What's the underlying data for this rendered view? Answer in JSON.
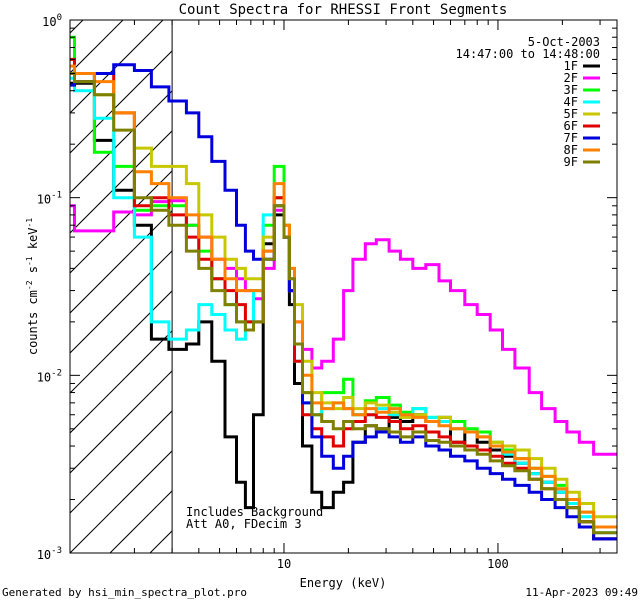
{
  "chart_data": {
    "type": "line",
    "title": "Count Spectra for RHESSI Front Segments",
    "xlabel": "Energy (keV)",
    "ylabel": "counts cm",
    "ylabel_parts": [
      "counts cm",
      "-2",
      " s",
      "-1",
      " keV",
      "-1"
    ],
    "x_scale": "log",
    "y_scale": "log",
    "xlim": [
      1,
      360
    ],
    "ylim": [
      0.001,
      1
    ],
    "x_tick_labels": [
      {
        "value": 10,
        "label": "10"
      },
      {
        "value": 100,
        "label": "100"
      }
    ],
    "y_tick_labels": [
      {
        "value": 1,
        "base": "10",
        "exp": "0"
      },
      {
        "value": 0.1,
        "base": "10",
        "exp": "-1"
      },
      {
        "value": 0.01,
        "base": "10",
        "exp": "-2"
      },
      {
        "value": 0.001,
        "base": "10",
        "exp": "-3"
      }
    ],
    "attenuator_line_energy": 3,
    "date": "5-Oct-2003",
    "time_range": "14:47:00 to 14:48:00",
    "annotations": [
      "Includes Background",
      "Att A0, FDecim 3"
    ],
    "legend_position": "top-right",
    "series": [
      {
        "name": "1F",
        "color": "#000000",
        "x": [
          1.05,
          1.3,
          1.6,
          2,
          2.4,
          2.9,
          3.5,
          4,
          4.6,
          5.3,
          6,
          6.6,
          7.2,
          8,
          9,
          10,
          10.6,
          11.2,
          12.2,
          13.5,
          15,
          17,
          19,
          21,
          24,
          27,
          31,
          35,
          40,
          46,
          53,
          60,
          70,
          80,
          92,
          105,
          120,
          140,
          160,
          185,
          210,
          240,
          280,
          320
        ],
        "y": [
          0.44,
          0.44,
          0.21,
          0.11,
          0.07,
          0.016,
          0.014,
          0.015,
          0.02,
          0.012,
          0.0045,
          0.0025,
          0.0018,
          0.006,
          0.055,
          0.08,
          0.06,
          0.025,
          0.009,
          0.004,
          0.0022,
          0.0018,
          0.0022,
          0.0025,
          0.0042,
          0.0052,
          0.005,
          0.0058,
          0.0055,
          0.006,
          0.0055,
          0.0058,
          0.0042,
          0.0048,
          0.0042,
          0.0038,
          0.0035,
          0.0032,
          0.0028,
          0.0025,
          0.0022,
          0.0018,
          0.0015,
          0.0012
        ]
      },
      {
        "name": "2F",
        "color": "#ff00ff",
        "x": [
          1.05,
          1.3,
          1.6,
          2,
          2.4,
          2.9,
          3.5,
          4,
          4.6,
          5.3,
          6,
          6.6,
          7.2,
          8,
          9,
          10,
          10.6,
          11.2,
          12.2,
          13.5,
          15,
          17,
          19,
          21,
          24,
          27,
          31,
          35,
          40,
          46,
          53,
          60,
          70,
          80,
          92,
          105,
          120,
          140,
          160,
          185,
          210,
          240,
          280,
          320
        ],
        "y": [
          0.09,
          0.065,
          0.065,
          0.083,
          0.08,
          0.095,
          0.096,
          0.07,
          0.06,
          0.045,
          0.04,
          0.035,
          0.03,
          0.027,
          0.04,
          0.085,
          0.06,
          0.03,
          0.02,
          0.014,
          0.011,
          0.012,
          0.016,
          0.03,
          0.045,
          0.055,
          0.058,
          0.05,
          0.045,
          0.04,
          0.042,
          0.034,
          0.03,
          0.025,
          0.022,
          0.018,
          0.014,
          0.011,
          0.008,
          0.0065,
          0.0055,
          0.0048,
          0.0042,
          0.0036
        ]
      },
      {
        "name": "3F",
        "color": "#00ff00",
        "x": [
          1.05,
          1.3,
          1.6,
          2,
          2.4,
          2.9,
          3.5,
          4,
          4.6,
          5.3,
          6,
          6.6,
          7.2,
          8,
          9,
          10,
          10.6,
          11.2,
          12.2,
          13.5,
          15,
          17,
          19,
          21,
          24,
          27,
          31,
          35,
          40,
          46,
          53,
          60,
          70,
          80,
          92,
          105,
          120,
          140,
          160,
          185,
          210,
          240,
          280,
          320
        ],
        "y": [
          0.8,
          0.5,
          0.18,
          0.15,
          0.085,
          0.09,
          0.09,
          0.07,
          0.05,
          0.035,
          0.025,
          0.02,
          0.02,
          0.03,
          0.07,
          0.15,
          0.07,
          0.035,
          0.015,
          0.008,
          0.006,
          0.008,
          0.008,
          0.0095,
          0.006,
          0.0072,
          0.0075,
          0.0068,
          0.0062,
          0.0065,
          0.0058,
          0.0055,
          0.0055,
          0.005,
          0.0048,
          0.0042,
          0.0038,
          0.0034,
          0.003,
          0.0027,
          0.0024,
          0.002,
          0.0017,
          0.0014
        ]
      },
      {
        "name": "4F",
        "color": "#00ffff",
        "x": [
          1.05,
          1.3,
          1.6,
          2,
          2.4,
          2.9,
          3.5,
          4,
          4.6,
          5.3,
          6,
          6.6,
          7.2,
          8,
          9,
          10,
          10.6,
          11.2,
          12.2,
          13.5,
          15,
          17,
          19,
          21,
          24,
          27,
          31,
          35,
          40,
          46,
          53,
          60,
          70,
          80,
          92,
          105,
          120,
          140,
          160,
          185,
          210,
          240,
          280,
          320
        ],
        "y": [
          0.47,
          0.4,
          0.28,
          0.1,
          0.06,
          0.02,
          0.016,
          0.018,
          0.025,
          0.022,
          0.018,
          0.016,
          0.02,
          0.03,
          0.08,
          0.1,
          0.06,
          0.03,
          0.012,
          0.007,
          0.006,
          0.0065,
          0.007,
          0.0065,
          0.006,
          0.006,
          0.0065,
          0.006,
          0.006,
          0.0065,
          0.0058,
          0.0055,
          0.005,
          0.0048,
          0.0045,
          0.004,
          0.0036,
          0.0032,
          0.0028,
          0.0025,
          0.0022,
          0.0019,
          0.0016,
          0.0013
        ]
      },
      {
        "name": "5F",
        "color": "#c8c800",
        "x": [
          1.05,
          1.3,
          1.6,
          2,
          2.4,
          2.9,
          3.5,
          4,
          4.6,
          5.3,
          6,
          6.6,
          7.2,
          8,
          9,
          10,
          10.6,
          11.2,
          12.2,
          13.5,
          15,
          17,
          19,
          21,
          24,
          27,
          31,
          35,
          40,
          46,
          53,
          60,
          70,
          80,
          92,
          105,
          120,
          140,
          160,
          185,
          210,
          240,
          280,
          320
        ],
        "y": [
          0.5,
          0.45,
          0.38,
          0.3,
          0.19,
          0.15,
          0.15,
          0.12,
          0.08,
          0.06,
          0.045,
          0.04,
          0.035,
          0.035,
          0.06,
          0.1,
          0.07,
          0.04,
          0.025,
          0.012,
          0.008,
          0.007,
          0.0065,
          0.0075,
          0.0065,
          0.007,
          0.0068,
          0.0062,
          0.0058,
          0.006,
          0.0055,
          0.0058,
          0.005,
          0.0048,
          0.0045,
          0.0042,
          0.004,
          0.0038,
          0.0034,
          0.003,
          0.0026,
          0.0022,
          0.0019,
          0.0016
        ]
      },
      {
        "name": "6F",
        "color": "#e00000",
        "x": [
          1.05,
          1.3,
          1.6,
          2,
          2.4,
          2.9,
          3.5,
          4,
          4.6,
          5.3,
          6,
          6.6,
          7.2,
          8,
          9,
          10,
          10.6,
          11.2,
          12.2,
          13.5,
          15,
          17,
          19,
          21,
          24,
          27,
          31,
          35,
          40,
          46,
          53,
          60,
          70,
          80,
          92,
          105,
          120,
          140,
          160,
          185,
          210,
          240,
          280,
          320
        ],
        "y": [
          0.6,
          0.5,
          0.5,
          0.3,
          0.09,
          0.1,
          0.08,
          0.06,
          0.045,
          0.035,
          0.03,
          0.025,
          0.02,
          0.02,
          0.05,
          0.1,
          0.06,
          0.03,
          0.012,
          0.006,
          0.005,
          0.0045,
          0.004,
          0.005,
          0.0055,
          0.006,
          0.0058,
          0.0055,
          0.005,
          0.0052,
          0.0048,
          0.0045,
          0.0042,
          0.004,
          0.0038,
          0.0035,
          0.0032,
          0.003,
          0.0026,
          0.0023,
          0.002,
          0.0018,
          0.0015,
          0.0012
        ]
      },
      {
        "name": "7F",
        "color": "#0000dd",
        "x": [
          1.05,
          1.3,
          1.6,
          2,
          2.4,
          2.9,
          3.5,
          4,
          4.6,
          5.3,
          6,
          6.6,
          7.2,
          8,
          9,
          10,
          10.6,
          11.2,
          12.2,
          13.5,
          15,
          17,
          19,
          21,
          24,
          27,
          31,
          35,
          40,
          46,
          53,
          60,
          70,
          80,
          92,
          105,
          120,
          140,
          160,
          185,
          210,
          240,
          280,
          320
        ],
        "y": [
          0.43,
          0.45,
          0.5,
          0.56,
          0.52,
          0.42,
          0.35,
          0.3,
          0.22,
          0.16,
          0.11,
          0.07,
          0.05,
          0.045,
          0.045,
          0.09,
          0.06,
          0.03,
          0.015,
          0.007,
          0.0045,
          0.0035,
          0.003,
          0.0035,
          0.0042,
          0.0045,
          0.0048,
          0.0045,
          0.0042,
          0.0045,
          0.004,
          0.0038,
          0.0035,
          0.0033,
          0.003,
          0.0028,
          0.0026,
          0.0024,
          0.0022,
          0.002,
          0.0018,
          0.0016,
          0.0014,
          0.0012
        ]
      },
      {
        "name": "8F",
        "color": "#ff8000",
        "x": [
          1.05,
          1.3,
          1.6,
          2,
          2.4,
          2.9,
          3.5,
          4,
          4.6,
          5.3,
          6,
          6.6,
          7.2,
          8,
          9,
          10,
          10.6,
          11.2,
          12.2,
          13.5,
          15,
          17,
          19,
          21,
          24,
          27,
          31,
          35,
          40,
          46,
          53,
          60,
          70,
          80,
          92,
          105,
          120,
          140,
          160,
          185,
          210,
          240,
          280,
          320
        ],
        "y": [
          0.55,
          0.5,
          0.45,
          0.3,
          0.14,
          0.12,
          0.1,
          0.08,
          0.06,
          0.045,
          0.035,
          0.03,
          0.03,
          0.03,
          0.05,
          0.12,
          0.07,
          0.04,
          0.02,
          0.01,
          0.007,
          0.0065,
          0.007,
          0.0065,
          0.006,
          0.0065,
          0.0062,
          0.0065,
          0.006,
          0.0058,
          0.0055,
          0.0052,
          0.005,
          0.0048,
          0.0045,
          0.004,
          0.0037,
          0.0034,
          0.003,
          0.0027,
          0.0023,
          0.002,
          0.0017,
          0.0014
        ]
      },
      {
        "name": "9F",
        "color": "#808000",
        "x": [
          1.05,
          1.3,
          1.6,
          2,
          2.4,
          2.9,
          3.5,
          4,
          4.6,
          5.3,
          6,
          6.6,
          7.2,
          8,
          9,
          10,
          10.6,
          11.2,
          12.2,
          13.5,
          15,
          17,
          19,
          21,
          24,
          27,
          31,
          35,
          40,
          46,
          53,
          60,
          70,
          80,
          92,
          105,
          120,
          140,
          160,
          185,
          210,
          240,
          280,
          320
        ],
        "y": [
          0.5,
          0.45,
          0.38,
          0.24,
          0.1,
          0.085,
          0.07,
          0.05,
          0.04,
          0.03,
          0.025,
          0.02,
          0.018,
          0.02,
          0.045,
          0.09,
          0.06,
          0.035,
          0.015,
          0.008,
          0.006,
          0.0055,
          0.005,
          0.0055,
          0.005,
          0.0052,
          0.005,
          0.0048,
          0.0045,
          0.0048,
          0.0043,
          0.0042,
          0.004,
          0.0038,
          0.0036,
          0.0033,
          0.0031,
          0.0029,
          0.0026,
          0.0023,
          0.002,
          0.0018,
          0.0015,
          0.0013
        ]
      }
    ]
  },
  "footer": {
    "generated_by": "Generated by hsi_min_spectra_plot.pro",
    "date_stamp": "11-Apr-2023 09:49"
  }
}
